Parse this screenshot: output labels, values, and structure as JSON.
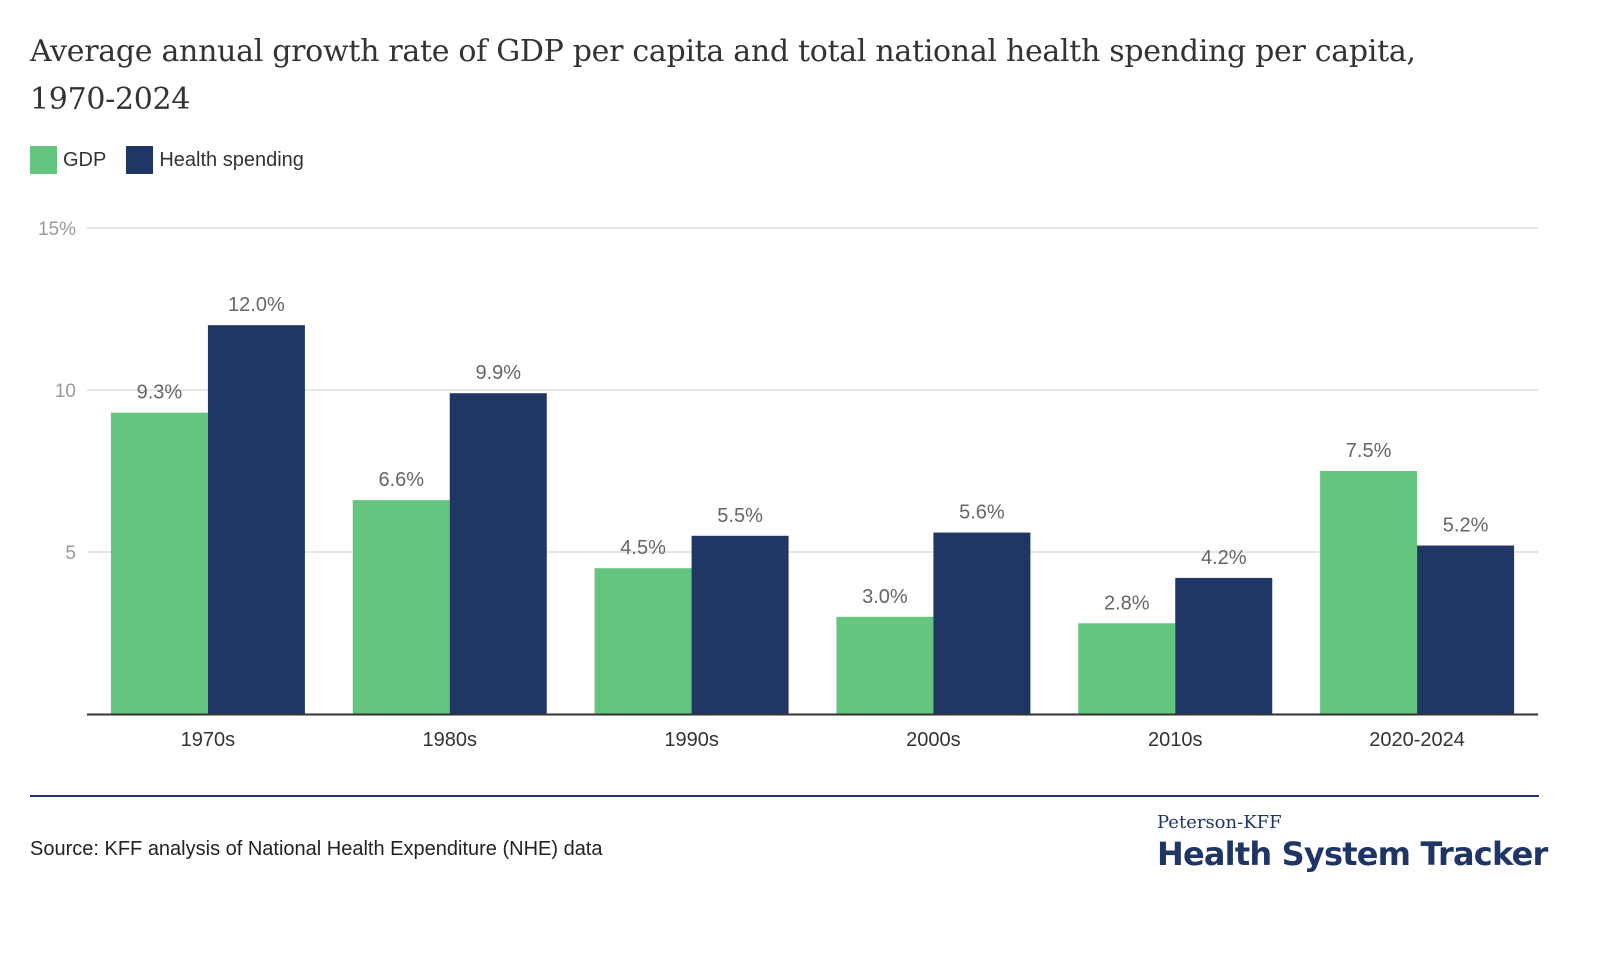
{
  "chart_data": {
    "type": "bar",
    "title": "Average annual growth rate of GDP per capita and total national health spending per capita, 1970-2024",
    "categories": [
      "1970s",
      "1980s",
      "1990s",
      "2000s",
      "2010s",
      "2020-2024"
    ],
    "series": [
      {
        "name": "GDP",
        "color": "#64c57f",
        "values": [
          9.3,
          6.6,
          4.5,
          3.0,
          2.8,
          7.5
        ],
        "labels": [
          "9.3%",
          "6.6%",
          "4.5%",
          "3.0%",
          "2.8%",
          "7.5%"
        ]
      },
      {
        "name": "Health spending",
        "color": "#203665",
        "values": [
          12.0,
          9.9,
          5.5,
          5.6,
          4.2,
          5.2
        ],
        "labels": [
          "12.0%",
          "9.9%",
          "5.5%",
          "5.6%",
          "4.2%",
          "5.2%"
        ]
      }
    ],
    "xlabel": "",
    "ylabel": "",
    "ylim": [
      0,
      15
    ],
    "yticks": [
      5,
      10,
      15
    ],
    "ytick_labels": [
      "5",
      "10",
      "15%"
    ],
    "grid": true,
    "legend_position": "top-left"
  },
  "title_line1": "Average annual growth rate of GDP per capita and total national health spending per capita,",
  "title_line2": "1970-2024",
  "legend": [
    {
      "label": "GDP",
      "color": "#64c57f"
    },
    {
      "label": "Health spending",
      "color": "#203665"
    }
  ],
  "source": "Source: KFF analysis of National Health Expenditure (NHE) data",
  "logo": {
    "top": "Peterson-KFF",
    "main": "Health System Tracker"
  }
}
